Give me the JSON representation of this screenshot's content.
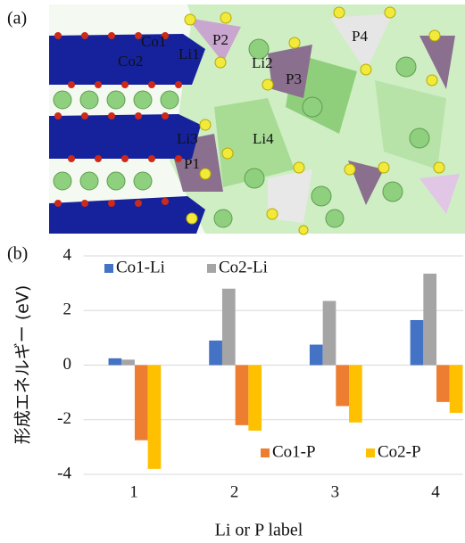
{
  "panel_a": {
    "label": "(a)",
    "atom_labels": [
      "Co1",
      "Co2",
      "Li1",
      "P2",
      "Li2",
      "P3",
      "P4",
      "Li3",
      "Li4",
      "P1"
    ]
  },
  "chart_data": {
    "type": "bar",
    "panel_label": "(b)",
    "x_label": "Li or P label",
    "y_label": "形成エネルギー (eV)",
    "categories": [
      "1",
      "2",
      "3",
      "4"
    ],
    "series": [
      {
        "name": "Co1-Li",
        "color": "#4472c4",
        "values": [
          0.25,
          0.9,
          0.75,
          1.65
        ]
      },
      {
        "name": "Co2-Li",
        "color": "#a5a5a5",
        "values": [
          0.2,
          2.8,
          2.35,
          3.35
        ]
      },
      {
        "name": "Co1-P",
        "color": "#ed7d31",
        "values": [
          -2.75,
          -2.2,
          -1.5,
          -1.35
        ]
      },
      {
        "name": "Co2-P",
        "color": "#ffc000",
        "values": [
          -3.8,
          -2.4,
          -2.1,
          -1.75
        ]
      }
    ],
    "ylim": [
      -4,
      4
    ],
    "yticks": [
      -4,
      -2,
      0,
      2,
      4
    ],
    "grid": true
  }
}
